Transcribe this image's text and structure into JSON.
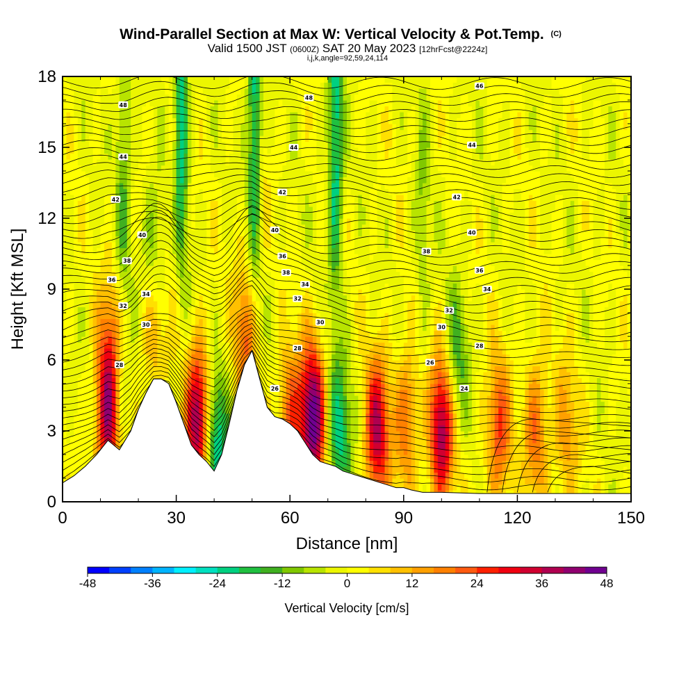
{
  "chart_data": {
    "type": "heatmap",
    "title": "Wind-Parallel Section at Max W: Vertical Velocity & Pot.Temp.",
    "title_mark": "(C)",
    "subtitle": {
      "main_a": "Valid 1500 JST",
      "utc": "(0600Z)",
      "main_b": "SAT 20 May 2023",
      "forecast": "[12hrFcst@2224z]"
    },
    "section_info": "i,j,k,angle=92,59,24,114",
    "xlabel": "Distance [nm]",
    "ylabel": "Height [Kft MSL]",
    "xlim": [
      0,
      150
    ],
    "ylim": [
      0,
      18
    ],
    "x_ticks": [
      "0",
      "30",
      "60",
      "90",
      "120",
      "150"
    ],
    "y_ticks": [
      "0",
      "3",
      "6",
      "9",
      "12",
      "15",
      "18"
    ],
    "terrain": {
      "x": [
        0,
        3,
        6,
        9,
        12,
        15,
        18,
        20,
        22,
        24,
        26,
        28,
        30,
        32,
        34,
        36,
        38,
        40,
        42,
        44,
        46,
        48,
        50,
        52,
        54,
        56,
        58,
        60,
        62,
        64,
        66,
        68,
        70,
        72,
        74,
        76,
        78,
        80,
        82,
        84,
        86,
        88,
        90,
        92,
        95,
        100,
        110,
        120,
        130,
        140,
        145,
        150
      ],
      "height": [
        0.8,
        1.1,
        1.5,
        2.0,
        2.6,
        2.2,
        3.0,
        3.9,
        4.6,
        5.2,
        5.2,
        5.0,
        4.2,
        3.3,
        2.4,
        2.0,
        1.7,
        1.3,
        2.0,
        3.3,
        4.7,
        5.8,
        6.4,
        5.2,
        4.0,
        3.6,
        3.5,
        3.3,
        3.0,
        2.5,
        2.0,
        1.7,
        1.6,
        1.5,
        1.3,
        1.2,
        1.1,
        1.0,
        0.9,
        0.8,
        0.7,
        0.6,
        0.6,
        0.5,
        0.4,
        0.4,
        0.35,
        0.35,
        0.35,
        0.35,
        0.35,
        0.35
      ]
    },
    "vertical_velocity": {
      "name": "Vertical Velocity [cm/s]",
      "scale_min": -48,
      "scale_max": 48,
      "updrafts": [
        {
          "x": 12,
          "z": 3.5,
          "w": 40
        },
        {
          "x": 13,
          "z": 6.5,
          "w": 24
        },
        {
          "x": 36,
          "z": 3.5,
          "w": 44
        },
        {
          "x": 49,
          "z": 7.5,
          "w": 40
        },
        {
          "x": 66,
          "z": 3.5,
          "w": 48
        },
        {
          "x": 83,
          "z": 3,
          "w": 36
        },
        {
          "x": 100,
          "z": 3,
          "w": 40
        },
        {
          "x": 91,
          "z": 3.5,
          "w": 20
        },
        {
          "x": 115,
          "z": 3,
          "w": 24
        },
        {
          "x": 125,
          "z": 3,
          "w": 20
        },
        {
          "x": 133,
          "z": 3,
          "w": 14
        },
        {
          "x": 60,
          "z": 3.5,
          "w": 22
        },
        {
          "x": 52,
          "z": 14,
          "w": 14
        },
        {
          "x": 30,
          "z": 14,
          "w": 12
        },
        {
          "x": 24,
          "z": 7.5,
          "w": 16
        }
      ],
      "downdrafts": [
        {
          "x": 31,
          "z": 16,
          "w": -32
        },
        {
          "x": 51,
          "z": 16,
          "w": -32
        },
        {
          "x": 72,
          "z": 15,
          "w": -24
        },
        {
          "x": 40,
          "z": 2.5,
          "w": -28
        },
        {
          "x": 50,
          "z": 8,
          "w": -24
        },
        {
          "x": 73,
          "z": 2.8,
          "w": -22
        },
        {
          "x": 14,
          "z": 5,
          "w": -18
        },
        {
          "x": 24,
          "z": 10,
          "w": -14
        },
        {
          "x": 104,
          "z": 6,
          "w": -14
        },
        {
          "x": 16,
          "z": 14,
          "w": -12
        },
        {
          "x": 95,
          "z": 12,
          "w": -8
        }
      ]
    },
    "potential_temperature": {
      "name": "Pot.Temp.",
      "contour_labels": [
        {
          "text": "48",
          "x": 16,
          "z": 16.8
        },
        {
          "text": "48",
          "x": 65,
          "z": 17.1
        },
        {
          "text": "46",
          "x": 110,
          "z": 17.6
        },
        {
          "text": "44",
          "x": 16,
          "z": 14.6
        },
        {
          "text": "44",
          "x": 61,
          "z": 15.0
        },
        {
          "text": "44",
          "x": 108,
          "z": 15.1
        },
        {
          "text": "42",
          "x": 14,
          "z": 12.8
        },
        {
          "text": "42",
          "x": 58,
          "z": 13.1
        },
        {
          "text": "42",
          "x": 104,
          "z": 12.9
        },
        {
          "text": "40",
          "x": 21,
          "z": 11.3
        },
        {
          "text": "40",
          "x": 56,
          "z": 11.5
        },
        {
          "text": "40",
          "x": 108,
          "z": 11.4
        },
        {
          "text": "38",
          "x": 17,
          "z": 10.2
        },
        {
          "text": "38",
          "x": 96,
          "z": 10.6
        },
        {
          "text": "36",
          "x": 58,
          "z": 10.4
        },
        {
          "text": "36",
          "x": 110,
          "z": 9.8
        },
        {
          "text": "36",
          "x": 13,
          "z": 9.4
        },
        {
          "text": "38",
          "x": 59,
          "z": 9.7
        },
        {
          "text": "34",
          "x": 22,
          "z": 8.8
        },
        {
          "text": "34",
          "x": 64,
          "z": 9.2
        },
        {
          "text": "34",
          "x": 112,
          "z": 9.0
        },
        {
          "text": "32",
          "x": 16,
          "z": 8.3
        },
        {
          "text": "32",
          "x": 62,
          "z": 8.6
        },
        {
          "text": "32",
          "x": 102,
          "z": 8.1
        },
        {
          "text": "30",
          "x": 22,
          "z": 7.5
        },
        {
          "text": "30",
          "x": 68,
          "z": 7.6
        },
        {
          "text": "30",
          "x": 100,
          "z": 7.4
        },
        {
          "text": "28",
          "x": 15,
          "z": 5.8
        },
        {
          "text": "28",
          "x": 62,
          "z": 6.5
        },
        {
          "text": "28",
          "x": 110,
          "z": 6.6
        },
        {
          "text": "26",
          "x": 56,
          "z": 4.8
        },
        {
          "text": "26",
          "x": 97,
          "z": 5.9
        },
        {
          "text": "24",
          "x": 106,
          "z": 4.8
        }
      ]
    },
    "colorbar": {
      "label": "Vertical Velocity [cm/s]",
      "ticks": [
        "-48",
        "-36",
        "-24",
        "-12",
        "0",
        "12",
        "24",
        "36",
        "48"
      ],
      "colors": [
        "#0000ff",
        "#0040ff",
        "#0080ff",
        "#00b4ff",
        "#00f0ff",
        "#00e0c0",
        "#00d080",
        "#20c040",
        "#40b020",
        "#80c800",
        "#b8e400",
        "#ecf600",
        "#ffff00",
        "#ffe000",
        "#ffc000",
        "#ffa000",
        "#ff8000",
        "#ff5a10",
        "#ff2000",
        "#f00010",
        "#d00030",
        "#b00050",
        "#900070",
        "#700090"
      ]
    }
  }
}
